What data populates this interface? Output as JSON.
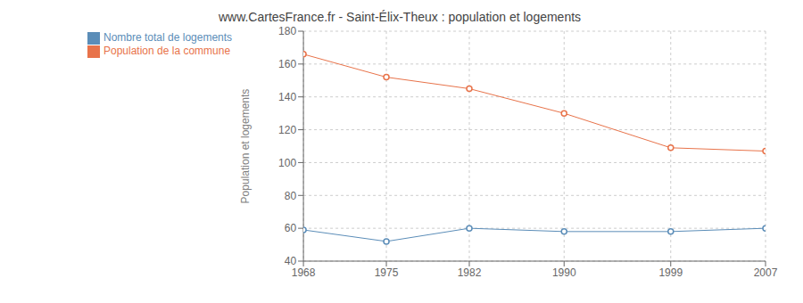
{
  "chart_data": {
    "type": "line",
    "title": "www.CartesFrance.fr - Saint-Élix-Theux : population et logements",
    "ylabel": "Population et logements",
    "x": [
      1968,
      1975,
      1982,
      1990,
      1999,
      2007
    ],
    "series": [
      {
        "name": "Nombre total de logements",
        "color": "#5b8db8",
        "values": [
          59,
          52,
          60,
          58,
          58,
          60
        ],
        "marker": "circle"
      },
      {
        "name": "Population de la commune",
        "color": "#e8734a",
        "values": [
          166,
          152,
          145,
          130,
          109,
          107
        ],
        "marker": "circle"
      }
    ],
    "xlim": [
      1968,
      2007
    ],
    "xticks": [
      1968,
      1975,
      1982,
      1990,
      1999,
      2007
    ],
    "ylim": [
      40,
      180
    ],
    "yticks": [
      40,
      60,
      80,
      100,
      120,
      140,
      160,
      180
    ],
    "grid": true,
    "legend": "top left"
  }
}
